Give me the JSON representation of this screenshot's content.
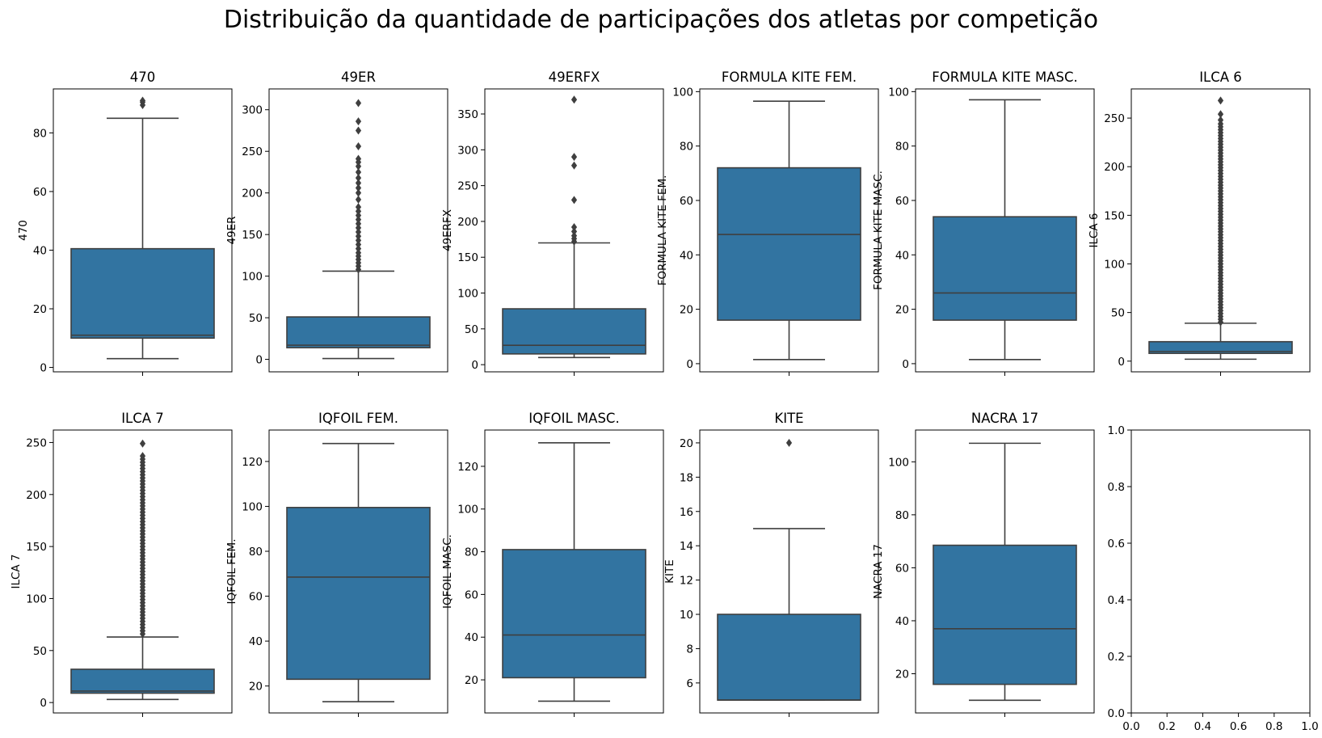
{
  "figure": {
    "title": "Distribuição da quantidade de participações dos atletas por competição"
  },
  "style": {
    "box_fill": "#3274a1",
    "line_color": "#3f3f3f",
    "axis_color": "#000000",
    "background": "#ffffff"
  },
  "chart_data": [
    {
      "type": "box",
      "title": "470",
      "ylabel": "470",
      "ylim": [
        -1.5,
        95
      ],
      "yticks": [
        0,
        20,
        40,
        60,
        80
      ],
      "ytick_labels": [
        "0",
        "20",
        "40",
        "60",
        "80"
      ],
      "whisker_low": 3,
      "q1": 10,
      "median": 11,
      "q3": 40.5,
      "whisker_high": 85,
      "outliers": [
        89.5,
        90.5,
        91
      ]
    },
    {
      "type": "box",
      "title": "49ER",
      "ylabel": "49ER",
      "ylim": [
        -15,
        325
      ],
      "yticks": [
        0,
        50,
        100,
        150,
        200,
        250,
        300
      ],
      "ytick_labels": [
        "0",
        "50",
        "100",
        "150",
        "200",
        "250",
        "300"
      ],
      "whisker_low": 1,
      "q1": 14,
      "median": 17,
      "q3": 51,
      "whisker_high": 106,
      "outliers": [
        108,
        112,
        116,
        120,
        124,
        128,
        133,
        138,
        143,
        148,
        153,
        158,
        163,
        168,
        173,
        178,
        183,
        192,
        200,
        206,
        212,
        218,
        225,
        232,
        237,
        241,
        256,
        275,
        286,
        308
      ]
    },
    {
      "type": "box",
      "title": "49ERFX",
      "ylabel": "49ERFX",
      "ylim": [
        -10,
        385
      ],
      "yticks": [
        0,
        50,
        100,
        150,
        200,
        250,
        300,
        350
      ],
      "ytick_labels": [
        "0",
        "50",
        "100",
        "150",
        "200",
        "250",
        "300",
        "350"
      ],
      "whisker_low": 10,
      "q1": 15,
      "median": 27,
      "q3": 78,
      "whisker_high": 170,
      "outliers": [
        172,
        176,
        180,
        186,
        192,
        230,
        278,
        290,
        370
      ]
    },
    {
      "type": "box",
      "title": "FORMULA KITE FEM.",
      "ylabel": "FORMULA KITE FEM.",
      "ylim": [
        -3,
        101
      ],
      "yticks": [
        0,
        20,
        40,
        60,
        80,
        100
      ],
      "ytick_labels": [
        "0",
        "20",
        "40",
        "60",
        "80",
        "100"
      ],
      "whisker_low": 1.5,
      "q1": 16,
      "median": 47.5,
      "q3": 72,
      "whisker_high": 96.5,
      "outliers": []
    },
    {
      "type": "box",
      "title": "FORMULA KITE MASC.",
      "ylabel": "FORMULA KITE MASC.",
      "ylim": [
        -3,
        101
      ],
      "yticks": [
        0,
        20,
        40,
        60,
        80,
        100
      ],
      "ytick_labels": [
        "0",
        "20",
        "40",
        "60",
        "80",
        "100"
      ],
      "whisker_low": 1.5,
      "q1": 16,
      "median": 26,
      "q3": 54,
      "whisker_high": 97,
      "outliers": []
    },
    {
      "type": "box",
      "title": "ILCA 6",
      "ylabel": "ILCA 6",
      "ylim": [
        -11,
        280
      ],
      "yticks": [
        0,
        50,
        100,
        150,
        200,
        250
      ],
      "ytick_labels": [
        "0",
        "50",
        "100",
        "150",
        "200",
        "250"
      ],
      "whisker_low": 2,
      "q1": 8,
      "median": 10,
      "q3": 20,
      "whisker_high": 39,
      "outliers": [
        40,
        43,
        46,
        49,
        52,
        55,
        58,
        61,
        64,
        67,
        70,
        73,
        76,
        79,
        82,
        85,
        88,
        91,
        94,
        97,
        100,
        103,
        106,
        109,
        112,
        115,
        118,
        121,
        124,
        127,
        130,
        133,
        136,
        139,
        142,
        145,
        148,
        151,
        154,
        157,
        160,
        163,
        166,
        169,
        172,
        175,
        178,
        181,
        184,
        187,
        190,
        193,
        196,
        199,
        202,
        205,
        208,
        211,
        214,
        217,
        220,
        223,
        226,
        229,
        232,
        235,
        238,
        241,
        244,
        248,
        254,
        268
      ]
    },
    {
      "type": "box",
      "title": "ILCA 7",
      "ylabel": "ILCA 7",
      "ylim": [
        -10,
        262
      ],
      "yticks": [
        0,
        50,
        100,
        150,
        200,
        250
      ],
      "ytick_labels": [
        "0",
        "50",
        "100",
        "150",
        "200",
        "250"
      ],
      "whisker_low": 3,
      "q1": 9,
      "median": 11,
      "q3": 32,
      "whisker_high": 63,
      "outliers": [
        66,
        69,
        72,
        75,
        78,
        81,
        84,
        87,
        90,
        93,
        96,
        99,
        102,
        105,
        108,
        111,
        114,
        117,
        120,
        123,
        126,
        129,
        132,
        135,
        138,
        141,
        144,
        147,
        150,
        153,
        156,
        159,
        162,
        165,
        168,
        171,
        174,
        177,
        180,
        183,
        186,
        189,
        192,
        195,
        198,
        201,
        204,
        207,
        210,
        213,
        216,
        219,
        222,
        225,
        228,
        231,
        234,
        237,
        249
      ]
    },
    {
      "type": "box",
      "title": "IQFOIL FEM.",
      "ylabel": "IQFOIL FEM.",
      "ylim": [
        8,
        134
      ],
      "yticks": [
        20,
        40,
        60,
        80,
        100,
        120
      ],
      "ytick_labels": [
        "20",
        "40",
        "60",
        "80",
        "100",
        "120"
      ],
      "whisker_low": 13,
      "q1": 23,
      "median": 68.5,
      "q3": 99.5,
      "whisker_high": 128,
      "outliers": []
    },
    {
      "type": "box",
      "title": "IQFOIL MASC.",
      "ylabel": "IQFOIL MASC.",
      "ylim": [
        4.5,
        137
      ],
      "yticks": [
        20,
        40,
        60,
        80,
        100,
        120
      ],
      "ytick_labels": [
        "20",
        "40",
        "60",
        "80",
        "100",
        "120"
      ],
      "whisker_low": 10,
      "q1": 21,
      "median": 41,
      "q3": 81,
      "whisker_high": 131,
      "outliers": []
    },
    {
      "type": "box",
      "title": "KITE",
      "ylabel": "KITE",
      "ylim": [
        4.25,
        20.75
      ],
      "yticks": [
        6,
        8,
        10,
        12,
        14,
        16,
        18,
        20
      ],
      "ytick_labels": [
        "6",
        "8",
        "10",
        "12",
        "14",
        "16",
        "18",
        "20"
      ],
      "whisker_low": 5,
      "q1": 5,
      "median": 5,
      "q3": 10,
      "whisker_high": 15,
      "outliers": [
        20
      ]
    },
    {
      "type": "box",
      "title": "NACRA 17",
      "ylabel": "NACRA 17",
      "ylim": [
        5.2,
        112
      ],
      "yticks": [
        20,
        40,
        60,
        80,
        100
      ],
      "ytick_labels": [
        "20",
        "40",
        "60",
        "80",
        "100"
      ],
      "whisker_low": 10,
      "q1": 16,
      "median": 37,
      "q3": 68.5,
      "whisker_high": 107,
      "outliers": []
    },
    {
      "type": "empty",
      "title": "",
      "ylabel": "",
      "xlim": [
        0,
        1
      ],
      "ylim": [
        0,
        1
      ],
      "xticks": [
        0,
        0.2,
        0.4,
        0.6,
        0.8,
        1
      ],
      "xtick_labels": [
        "0.0",
        "0.2",
        "0.4",
        "0.6",
        "0.8",
        "1.0"
      ],
      "yticks": [
        0,
        0.2,
        0.4,
        0.6,
        0.8,
        1
      ],
      "ytick_labels": [
        "0.0",
        "0.2",
        "0.4",
        "0.6",
        "0.8",
        "1.0"
      ]
    }
  ]
}
